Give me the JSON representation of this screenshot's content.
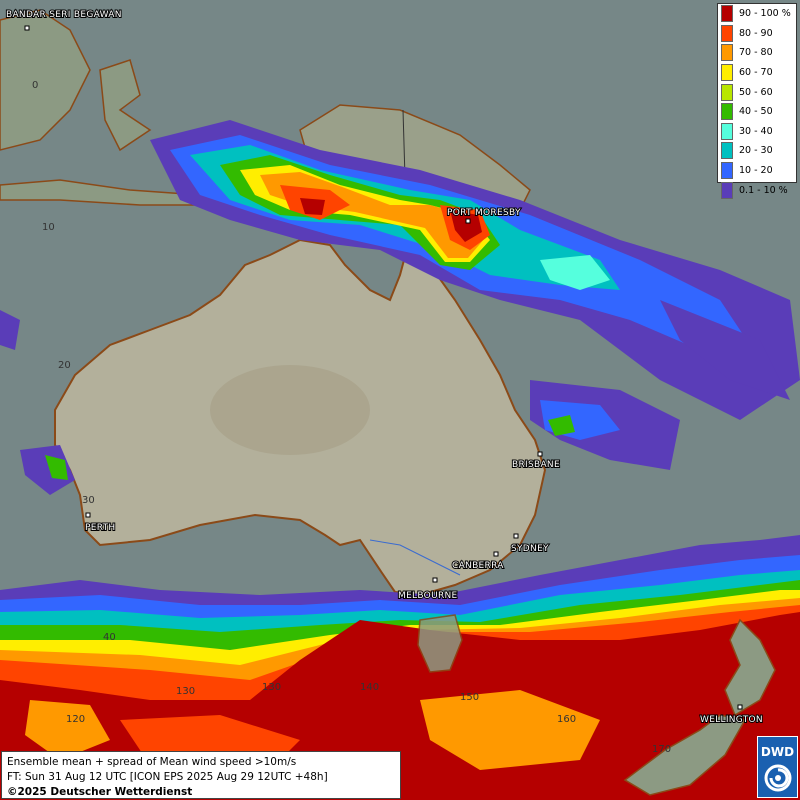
{
  "legend": {
    "items": [
      {
        "label": "90 - 100 %",
        "color": "#b50000"
      },
      {
        "label": "80 - 90",
        "color": "#ff4400"
      },
      {
        "label": "70 - 80",
        "color": "#ff9900"
      },
      {
        "label": "60 - 70",
        "color": "#ffee00"
      },
      {
        "label": "50 - 60",
        "color": "#b8e600"
      },
      {
        "label": "40 - 50",
        "color": "#33bb00"
      },
      {
        "label": "30 - 40",
        "color": "#55ffdd"
      },
      {
        "label": "20 - 30",
        "color": "#00c0c0"
      },
      {
        "label": "10 - 20",
        "color": "#3366ff"
      },
      {
        "label": "0.1 - 10 %",
        "color": "#5a3db8"
      }
    ]
  },
  "cities": {
    "bandar": "BANDAR SERI BEGAWAN",
    "port_moresby": "PORT MORESBY",
    "perth": "PERTH",
    "brisbane": "BRISBANE",
    "sydney": "SYDNEY",
    "canberra": "CANBERRA",
    "melbourne": "MELBOURNE",
    "wellington": "WELLINGTON"
  },
  "grid_labels": {
    "lat0": "0",
    "lat10": "10",
    "lat20": "20",
    "lat30": "30",
    "lat40": "40",
    "lon120": "120",
    "lon130": "130",
    "lon140": "140",
    "lon150": "150",
    "lon160": "160",
    "lon170": "170"
  },
  "caption": {
    "line1": "Ensemble mean + spread of Mean wind speed >10m/s",
    "line2": "FT: Sun 31 Aug 12 UTC [ICON EPS 2025 Aug 29 12UTC +48h]",
    "line3": "©2025 Deutscher Wetterdienst"
  },
  "logo": {
    "text": "DWD"
  }
}
